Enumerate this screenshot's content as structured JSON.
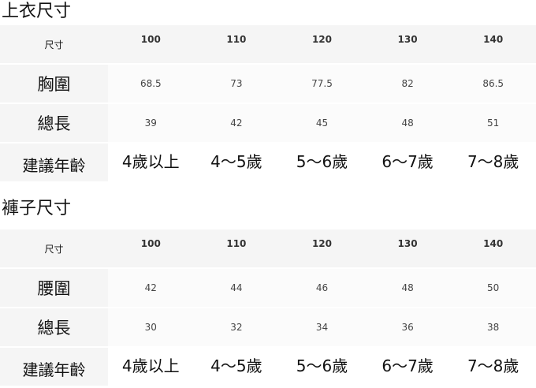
{
  "tables": [
    {
      "title": "上衣尺寸",
      "rows": [
        {
          "label": "尺寸",
          "values": [
            "100",
            "110",
            "120",
            "130",
            "140"
          ]
        },
        {
          "label": "胸圍",
          "values": [
            "68.5",
            "73",
            "77.5",
            "82",
            "86.5"
          ]
        },
        {
          "label": "總長",
          "values": [
            "39",
            "42",
            "45",
            "48",
            "51"
          ]
        },
        {
          "label": "建議年齡",
          "values": [
            "4歲以上",
            "4～5歲",
            "5～6歲",
            "6～7歲",
            "7～8歲"
          ]
        }
      ]
    },
    {
      "title": "褲子尺寸",
      "rows": [
        {
          "label": "尺寸",
          "values": [
            "100",
            "110",
            "120",
            "130",
            "140"
          ]
        },
        {
          "label": "腰圍",
          "values": [
            "42",
            "44",
            "46",
            "48",
            "50"
          ]
        },
        {
          "label": "總長",
          "values": [
            "30",
            "32",
            "34",
            "36",
            "38"
          ]
        },
        {
          "label": "建議年齡",
          "values": [
            "4歲以上",
            "4～5歲",
            "5～6歲",
            "6～7歲",
            "7～8歲"
          ]
        }
      ]
    }
  ]
}
